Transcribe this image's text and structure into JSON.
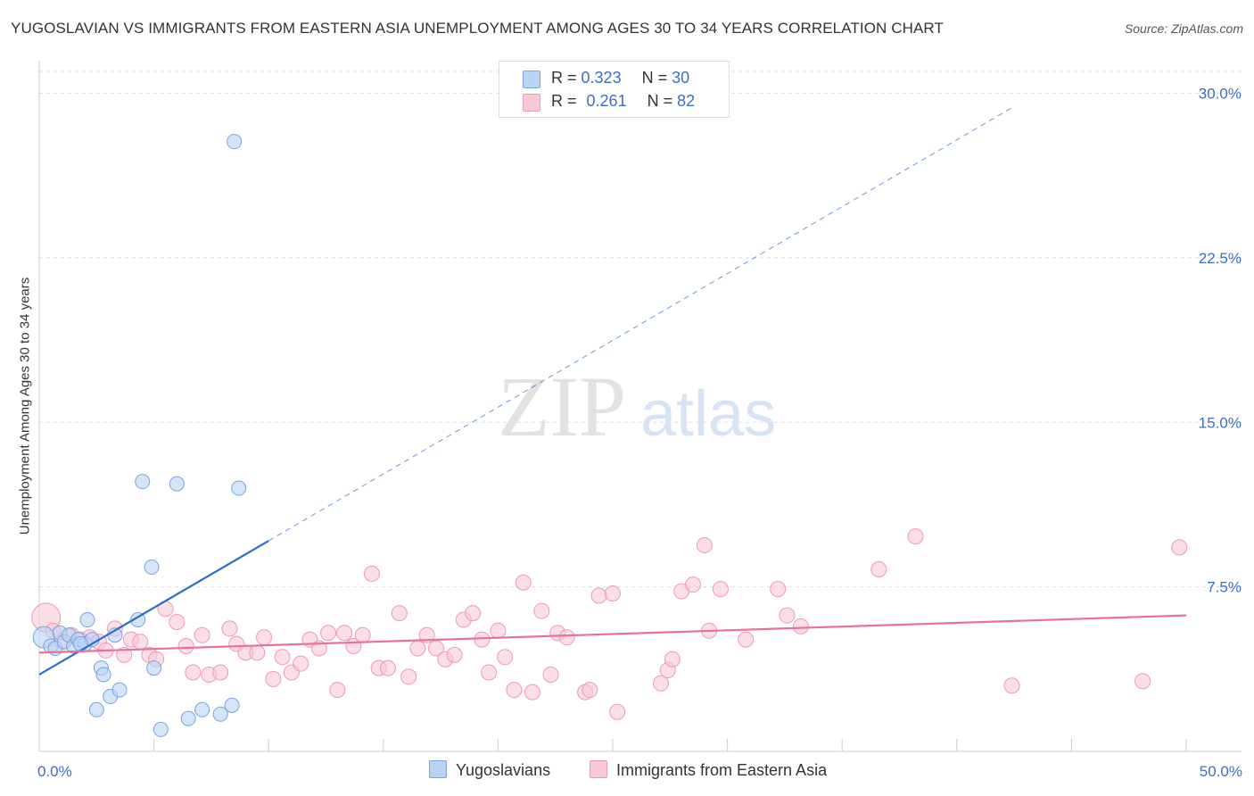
{
  "title": "YUGOSLAVIAN VS IMMIGRANTS FROM EASTERN ASIA UNEMPLOYMENT AMONG AGES 30 TO 34 YEARS CORRELATION CHART",
  "source": "Source: ZipAtlas.com",
  "watermark": {
    "zip": "ZIP",
    "atlas": "atlas"
  },
  "legend_top": {
    "rows": [
      {
        "r_label": "R =",
        "r_value": "0.323",
        "n_label": "N =",
        "n_value": "30"
      },
      {
        "r_label": "R =",
        "r_value": "0.261",
        "n_label": "N =",
        "n_value": "82"
      }
    ]
  },
  "colors": {
    "blue_fill": "#b9d3f5",
    "blue_stroke": "#7aa3dc",
    "blue_line": "#2a6fc9",
    "pink_fill": "#f8c8d6",
    "pink_stroke": "#ee9ab3",
    "pink_line": "#e8709a",
    "tick_label": "#3a6fc4",
    "grid": "#dddddd"
  },
  "chart_data": {
    "type": "scatter",
    "title": "YUGOSLAVIAN VS IMMIGRANTS FROM EASTERN ASIA UNEMPLOYMENT AMONG AGES 30 TO 34 YEARS CORRELATION CHART",
    "xlabel": "",
    "ylabel": "Unemployment Among Ages 30 to 34 years",
    "xlim": [
      0,
      50
    ],
    "ylim": [
      0,
      31
    ],
    "x_tick_labels": [
      "0.0%",
      "50.0%"
    ],
    "y_ticks": [
      7.5,
      15.0,
      22.5,
      30.0
    ],
    "y_tick_labels": [
      "7.5%",
      "15.0%",
      "22.5%",
      "30.0%"
    ],
    "grid": true,
    "legend_position": "top-center",
    "series": [
      {
        "name": "Yugoslavians",
        "r": 0.323,
        "n": 30,
        "trend": {
          "x0": 0,
          "y0": 3.5,
          "x_solid_end": 10,
          "y_solid_end": 9.6,
          "x_dash_end": 42.5,
          "y_dash_end": 29.4
        },
        "points": [
          [
            0.2,
            5.2
          ],
          [
            0.5,
            4.8
          ],
          [
            0.7,
            4.7
          ],
          [
            0.9,
            5.4
          ],
          [
            1.1,
            5.0
          ],
          [
            1.3,
            5.3
          ],
          [
            1.5,
            4.8
          ],
          [
            1.7,
            5.1
          ],
          [
            2.0,
            4.9
          ],
          [
            2.1,
            6.0
          ],
          [
            2.3,
            5.1
          ],
          [
            2.7,
            3.8
          ],
          [
            2.8,
            3.5
          ],
          [
            3.1,
            2.5
          ],
          [
            3.5,
            2.8
          ],
          [
            2.5,
            1.9
          ],
          [
            3.3,
            5.3
          ],
          [
            4.3,
            6.0
          ],
          [
            4.5,
            12.3
          ],
          [
            4.9,
            8.4
          ],
          [
            5.0,
            3.8
          ],
          [
            5.3,
            1.0
          ],
          [
            6.0,
            12.2
          ],
          [
            6.5,
            1.5
          ],
          [
            7.1,
            1.9
          ],
          [
            7.9,
            1.7
          ],
          [
            8.4,
            2.1
          ],
          [
            8.5,
            27.8
          ],
          [
            8.7,
            12.0
          ],
          [
            1.8,
            4.9
          ]
        ]
      },
      {
        "name": "Immigrants from Eastern Asia",
        "r": 0.261,
        "n": 82,
        "trend": {
          "x0": 0,
          "y0": 4.5,
          "x1": 50,
          "y1": 6.2
        },
        "points": [
          [
            0.3,
            6.1
          ],
          [
            0.6,
            5.5
          ],
          [
            1.0,
            5.0
          ],
          [
            1.4,
            5.3
          ],
          [
            1.8,
            5.1
          ],
          [
            2.2,
            5.2
          ],
          [
            2.6,
            5.0
          ],
          [
            2.9,
            4.6
          ],
          [
            3.3,
            5.6
          ],
          [
            3.7,
            4.4
          ],
          [
            4.0,
            5.1
          ],
          [
            4.4,
            5.0
          ],
          [
            4.8,
            4.4
          ],
          [
            5.1,
            4.2
          ],
          [
            5.5,
            6.5
          ],
          [
            6.0,
            5.9
          ],
          [
            6.4,
            4.8
          ],
          [
            6.7,
            3.6
          ],
          [
            7.1,
            5.3
          ],
          [
            7.4,
            3.5
          ],
          [
            7.9,
            3.6
          ],
          [
            8.3,
            5.6
          ],
          [
            8.6,
            4.9
          ],
          [
            9.0,
            4.5
          ],
          [
            9.5,
            4.5
          ],
          [
            9.8,
            5.2
          ],
          [
            10.2,
            3.3
          ],
          [
            10.6,
            4.3
          ],
          [
            11.0,
            3.6
          ],
          [
            11.4,
            4.0
          ],
          [
            11.8,
            5.1
          ],
          [
            12.2,
            4.7
          ],
          [
            12.6,
            5.4
          ],
          [
            13.0,
            2.8
          ],
          [
            13.3,
            5.4
          ],
          [
            13.7,
            4.8
          ],
          [
            14.1,
            5.3
          ],
          [
            14.5,
            8.1
          ],
          [
            14.8,
            3.8
          ],
          [
            15.2,
            3.8
          ],
          [
            15.7,
            6.3
          ],
          [
            16.1,
            3.4
          ],
          [
            16.5,
            4.7
          ],
          [
            16.9,
            5.3
          ],
          [
            17.3,
            4.7
          ],
          [
            17.7,
            4.2
          ],
          [
            18.1,
            4.4
          ],
          [
            18.5,
            6.0
          ],
          [
            18.9,
            6.3
          ],
          [
            19.3,
            5.1
          ],
          [
            19.6,
            3.6
          ],
          [
            20.0,
            5.5
          ],
          [
            20.3,
            4.3
          ],
          [
            20.7,
            2.8
          ],
          [
            21.1,
            7.7
          ],
          [
            21.5,
            2.7
          ],
          [
            21.9,
            6.4
          ],
          [
            22.3,
            3.5
          ],
          [
            22.6,
            5.4
          ],
          [
            23.0,
            5.2
          ],
          [
            23.8,
            2.7
          ],
          [
            24.0,
            2.8
          ],
          [
            24.4,
            7.1
          ],
          [
            25.0,
            7.2
          ],
          [
            25.2,
            1.8
          ],
          [
            27.1,
            3.1
          ],
          [
            27.4,
            3.7
          ],
          [
            27.6,
            4.2
          ],
          [
            28.0,
            7.3
          ],
          [
            28.5,
            7.6
          ],
          [
            29.0,
            9.4
          ],
          [
            29.2,
            5.5
          ],
          [
            29.7,
            7.4
          ],
          [
            30.8,
            5.1
          ],
          [
            32.2,
            7.4
          ],
          [
            32.6,
            6.2
          ],
          [
            33.2,
            5.7
          ],
          [
            36.6,
            8.3
          ],
          [
            38.2,
            9.8
          ],
          [
            42.4,
            3.0
          ],
          [
            48.1,
            3.2
          ],
          [
            49.7,
            9.3
          ]
        ]
      }
    ]
  },
  "legend_bottom": {
    "items": [
      "Yugoslavians",
      "Immigrants from Eastern Asia"
    ]
  }
}
